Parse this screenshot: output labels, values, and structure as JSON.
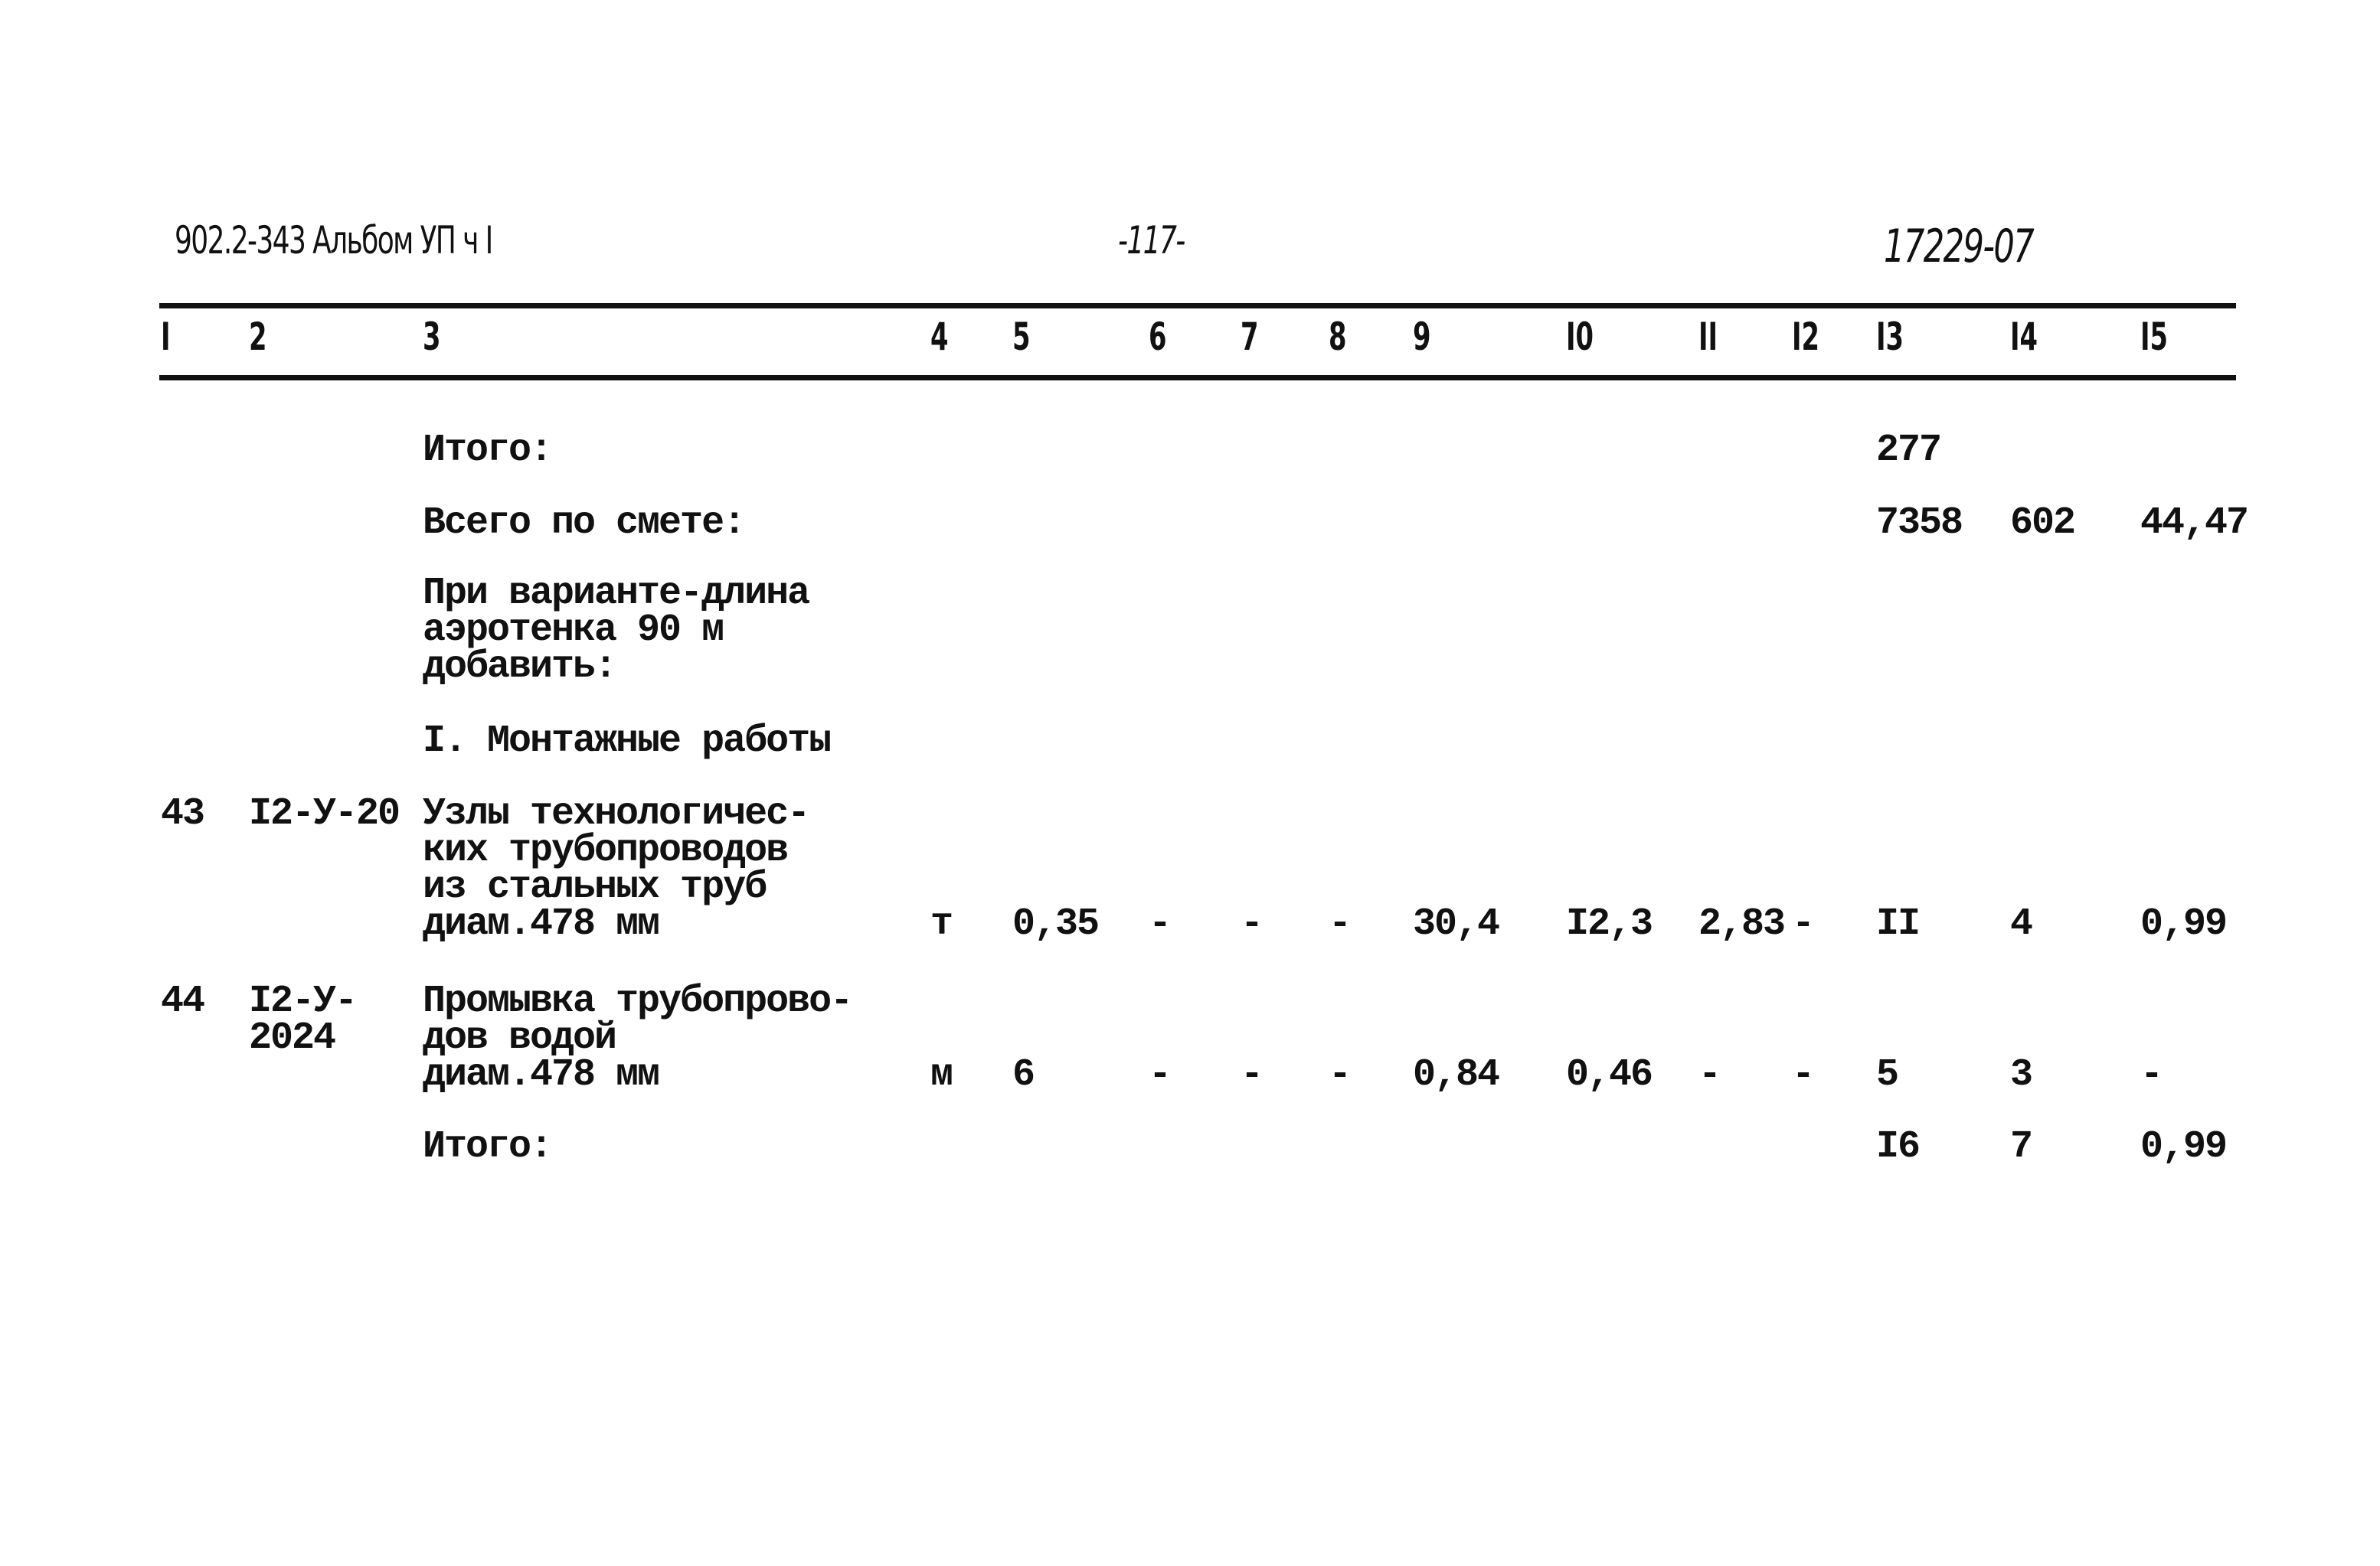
{
  "header": {
    "doc_code": "902.2-343 Альбом УП ч I",
    "page_number": "-117-",
    "ref_number": "17229-07"
  },
  "columns": [
    "I",
    "2",
    "3",
    "4",
    "5",
    "6",
    "7",
    "8",
    "9",
    "I0",
    "II",
    "I2",
    "I3",
    "I4",
    "I5"
  ],
  "rows": [
    {
      "desc": "Итого:",
      "c13": "277"
    },
    {
      "desc": "Всего по смете:",
      "c13": "7358",
      "c14": "602",
      "c15": "44,47"
    },
    {
      "desc_lines": [
        "При варианте-длина",
        "аэротенка 90 м",
        "добавить:"
      ]
    },
    {
      "desc": "I. Монтажные работы"
    },
    {
      "n": "43",
      "code": "I2-У-20",
      "desc_lines": [
        "Узлы технологичес-",
        "ких трубопроводов",
        "из стальных труб",
        "диам.478 мм"
      ],
      "c4": "т",
      "c5": "0,35",
      "c6": "-",
      "c7": "-",
      "c8": "-",
      "c9": "30,4",
      "c10": "I2,3",
      "c11": "2,83",
      "c12": "-",
      "c13": "II",
      "c14": "4",
      "c15": "0,99"
    },
    {
      "n": "44",
      "code_lines": [
        "I2-У-",
        "2024"
      ],
      "desc_lines": [
        "Промывка трубопрово-",
        "дов водой",
        "диам.478 мм"
      ],
      "c4": "м",
      "c5": "6",
      "c6": "-",
      "c7": "-",
      "c8": "-",
      "c9": "0,84",
      "c10": "0,46",
      "c11": "-",
      "c12": "-",
      "c13": "5",
      "c14": "3",
      "c15": "-"
    },
    {
      "desc": "Итого:",
      "c13": "I6",
      "c14": "7",
      "c15": "0,99"
    }
  ]
}
